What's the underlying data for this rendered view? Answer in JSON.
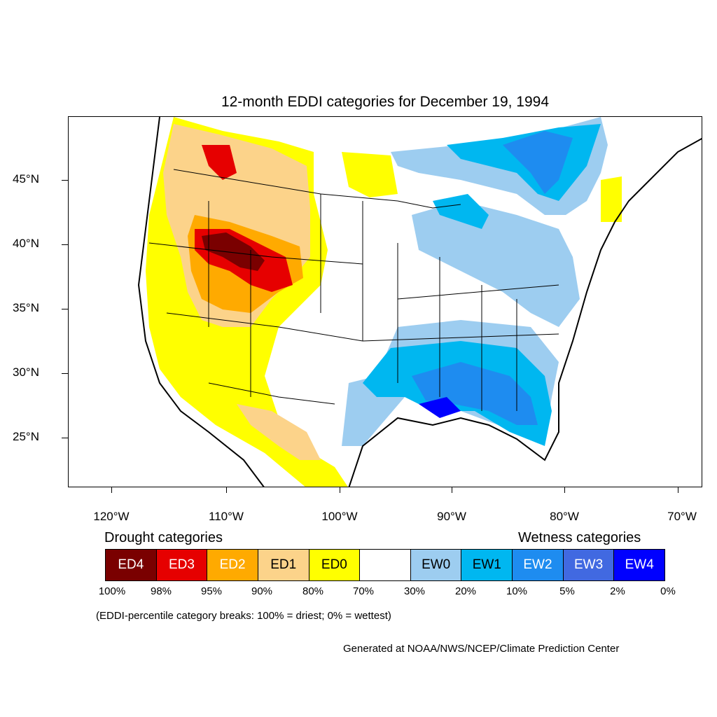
{
  "title": "12-month EDDI categories for December 19, 1994",
  "lat_labels": [
    "45°N",
    "40°N",
    "35°N",
    "30°N",
    "25°N"
  ],
  "lon_labels": [
    "120°W",
    "110°W",
    "100°W",
    "90°W",
    "80°W",
    "70°W"
  ],
  "legend": {
    "drought_heading": "Drought categories",
    "wetness_heading": "Wetness categories",
    "boxes": [
      {
        "label": "ED4",
        "color": "#7a0000",
        "text_color": "#ffffff"
      },
      {
        "label": "ED3",
        "color": "#e60000",
        "text_color": "#ffffff"
      },
      {
        "label": "ED2",
        "color": "#ffaa00",
        "text_color": "#ffffff"
      },
      {
        "label": "ED1",
        "color": "#fcd38a",
        "text_color": "#000000"
      },
      {
        "label": "ED0",
        "color": "#ffff00",
        "text_color": "#000000"
      },
      {
        "label": "",
        "color": "#ffffff",
        "text_color": "#000000"
      },
      {
        "label": "EW0",
        "color": "#9dcdf0",
        "text_color": "#000000"
      },
      {
        "label": "EW1",
        "color": "#00b7f0",
        "text_color": "#000000"
      },
      {
        "label": "EW2",
        "color": "#1e8cf0",
        "text_color": "#ffffff"
      },
      {
        "label": "EW3",
        "color": "#4169e1",
        "text_color": "#ffffff"
      },
      {
        "label": "EW4",
        "color": "#0000ff",
        "text_color": "#ffffff"
      }
    ],
    "percentiles": [
      "100%",
      "98%",
      "95%",
      "90%",
      "80%",
      "70%",
      "30%",
      "20%",
      "10%",
      "5%",
      "2%",
      "0%"
    ]
  },
  "note": "(EDDI-percentile category breaks: 100% = driest; 0% = wettest)",
  "credit": "Generated at NOAA/NWS/NCEP/Climate Prediction Center"
}
